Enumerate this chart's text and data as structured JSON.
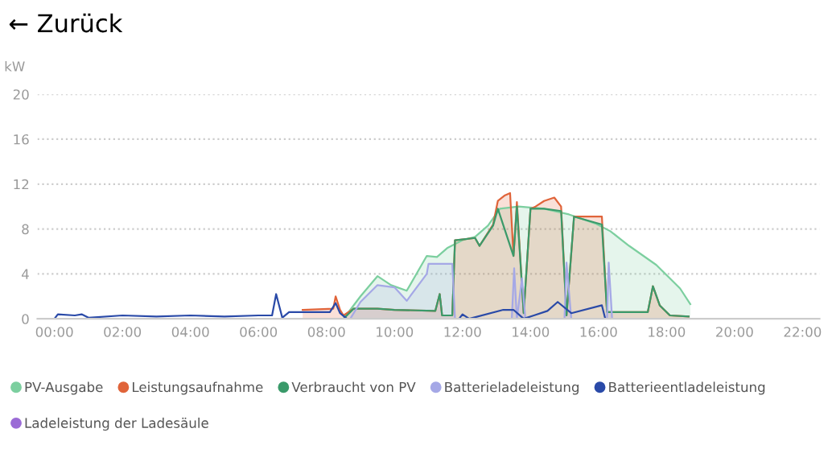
{
  "chart_data": {
    "type": "line",
    "title": "← Zurück",
    "ylabel": "kW",
    "xlim": [
      -0.5,
      22.5
    ],
    "xticks": [
      {
        "value": 0,
        "label": "00:00"
      },
      {
        "value": 2,
        "label": "02:00"
      },
      {
        "value": 4,
        "label": "04:00"
      },
      {
        "value": 6,
        "label": "06:00"
      },
      {
        "value": 8,
        "label": "08:00"
      },
      {
        "value": 10,
        "label": "10:00"
      },
      {
        "value": 12,
        "label": "12:00"
      },
      {
        "value": 14,
        "label": "14:00"
      },
      {
        "value": 16,
        "label": "16:00"
      },
      {
        "value": 18,
        "label": "18:00"
      },
      {
        "value": 20,
        "label": "20:00"
      },
      {
        "value": 22,
        "label": "22:00"
      }
    ],
    "ylim": [
      0,
      20
    ],
    "yticks": [
      0,
      4,
      8,
      12,
      16,
      20
    ],
    "grid": "y",
    "legend": "bottom",
    "marker": "none",
    "series": [
      {
        "name": "Ladeleistung der Ladesäule",
        "color": "#9b6bd6"
      },
      {
        "name": "PV-Ausgabe",
        "color": "#7ccf9f",
        "type": "area",
        "x": [
          8.5,
          9.0,
          9.5,
          9.9,
          10.36,
          10.95,
          11.25,
          11.55,
          12.0,
          12.37,
          12.75,
          13.1,
          13.65,
          14.4,
          15.13,
          15.9,
          16.35,
          16.9,
          17.7,
          18.4,
          18.7
        ],
        "values": [
          0,
          2.0,
          3.8,
          3.0,
          2.5,
          5.6,
          5.5,
          6.3,
          7.0,
          7.3,
          8.3,
          9.8,
          10.0,
          9.8,
          9.3,
          8.5,
          7.8,
          6.5,
          4.8,
          2.7,
          1.3
        ]
      },
      {
        "name": "Leistungsaufnahme",
        "color": "#e0643a",
        "type": "area",
        "x": [
          7.3,
          8.2,
          8.27,
          8.4,
          8.5,
          8.8,
          9.5,
          10.0,
          11.2,
          11.33,
          11.4,
          11.7,
          11.78,
          12.37,
          12.5,
          12.9,
          13.04,
          13.25,
          13.4,
          13.5,
          13.6,
          13.8,
          14.0,
          14.15,
          14.4,
          14.7,
          14.9,
          15.06,
          15.28,
          16.1,
          16.25,
          17.45,
          17.6,
          17.8,
          18.1,
          18.65
        ],
        "values": [
          0.8,
          0.9,
          2.0,
          0.8,
          0.3,
          0.9,
          0.9,
          0.8,
          0.7,
          2.2,
          0.3,
          0.3,
          7.0,
          7.2,
          6.5,
          8.4,
          10.5,
          11.0,
          11.2,
          5.6,
          10.4,
          0.5,
          9.8,
          10.0,
          10.5,
          10.8,
          10.0,
          0.3,
          9.1,
          9.1,
          0.6,
          0.6,
          2.9,
          1.2,
          0.3,
          0.2
        ]
      },
      {
        "name": "Verbraucht von PV",
        "color": "#3a9a6a",
        "x": [
          8.5,
          8.8,
          9.5,
          10.0,
          11.2,
          11.33,
          11.4,
          11.7,
          11.78,
          12.37,
          12.5,
          12.9,
          13.04,
          13.5,
          13.6,
          13.8,
          14.0,
          14.4,
          14.9,
          15.06,
          15.28,
          16.1,
          16.25,
          17.45,
          17.6,
          17.8,
          18.1,
          18.65
        ],
        "values": [
          0,
          0.9,
          0.9,
          0.8,
          0.7,
          2.2,
          0.3,
          0.3,
          7.0,
          7.2,
          6.5,
          8.3,
          9.8,
          5.6,
          10.0,
          0.5,
          9.8,
          9.8,
          9.6,
          0.3,
          9.1,
          8.4,
          0.6,
          0.6,
          2.9,
          1.2,
          0.3,
          0.2
        ]
      },
      {
        "name": "Batterieladeleistung",
        "color": "#a5a8e6",
        "type": "area",
        "x": [
          8.7,
          9.0,
          9.5,
          10.0,
          10.36,
          10.95,
          11.0,
          11.7,
          11.78,
          13.45,
          13.52,
          13.6,
          13.75,
          13.85,
          14.0,
          15.0,
          15.06,
          15.2,
          16.25,
          16.3,
          16.4
        ],
        "values": [
          0,
          1.5,
          3.0,
          2.8,
          1.6,
          4.0,
          4.9,
          4.9,
          0,
          0,
          4.5,
          0,
          3.6,
          0,
          0,
          0,
          5.0,
          0,
          0,
          5.0,
          0
        ]
      },
      {
        "name": "Batterieentladeleistung",
        "color": "#2a4aa8",
        "x": [
          0,
          0.1,
          0.6,
          0.8,
          1.0,
          2.0,
          3.0,
          4.0,
          5.0,
          6.0,
          6.4,
          6.52,
          6.7,
          6.9,
          8.1,
          8.27,
          8.4,
          8.6,
          11.9,
          12.0,
          12.2,
          13.2,
          13.5,
          13.8,
          14.1,
          14.5,
          14.8,
          15.2,
          16.1,
          16.2,
          18.8
        ],
        "values": [
          0,
          0.4,
          0.3,
          0.4,
          0.1,
          0.3,
          0.2,
          0.3,
          0.2,
          0.3,
          0.3,
          2.2,
          0.1,
          0.6,
          0.6,
          1.4,
          0.5,
          0,
          0,
          0.4,
          0,
          0.8,
          0.8,
          0,
          0.3,
          0.7,
          1.5,
          0.5,
          1.2,
          0,
          0
        ]
      }
    ]
  }
}
